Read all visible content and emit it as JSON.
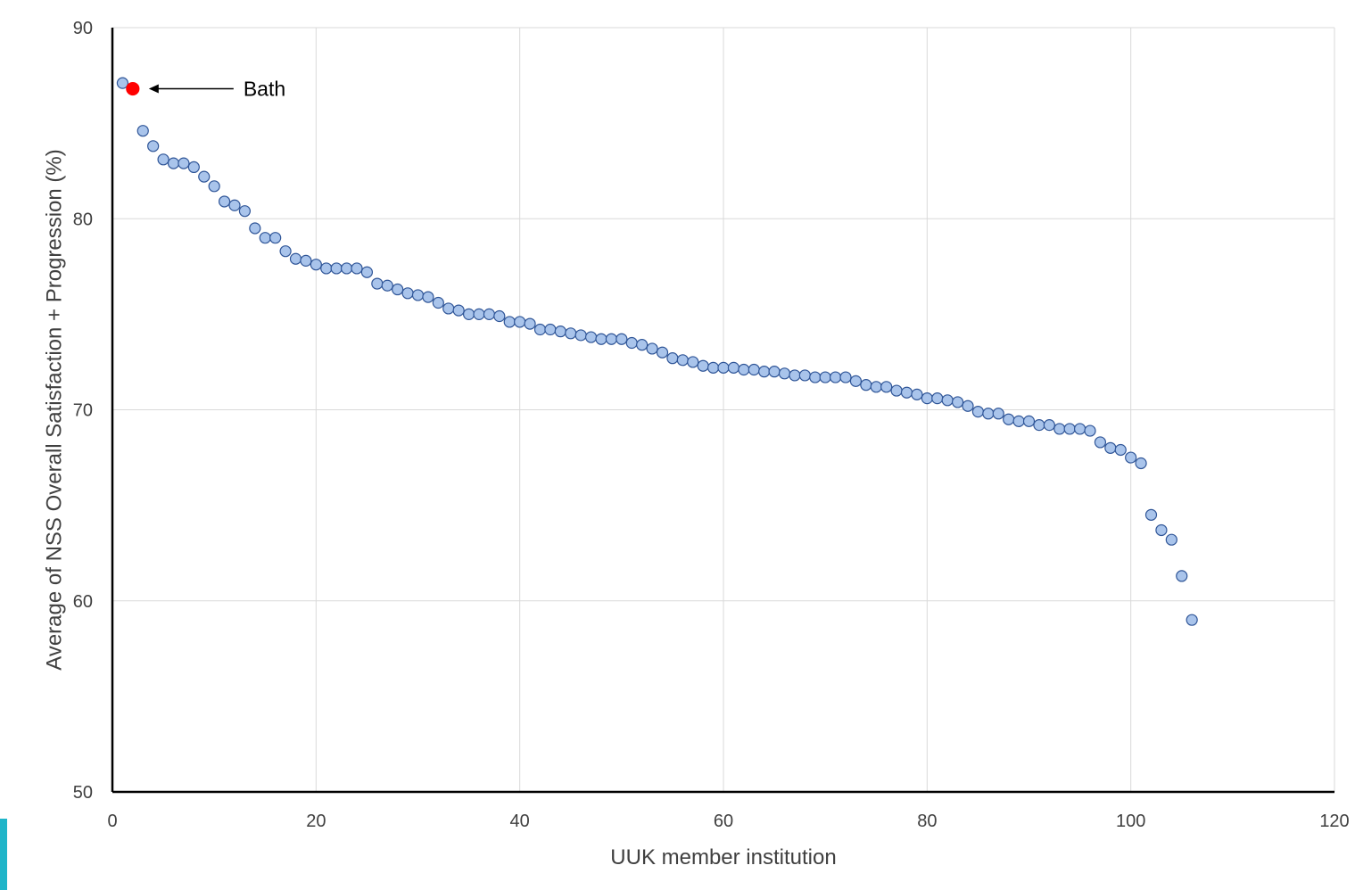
{
  "chart_data": {
    "type": "scatter",
    "title": "",
    "xlabel": "UUK member institution",
    "ylabel": "Average of NSS Overall Satisfaction + Progression (%)",
    "xlim": [
      0,
      120
    ],
    "ylim": [
      50,
      90
    ],
    "xticks": [
      0,
      20,
      40,
      60,
      80,
      100,
      120
    ],
    "yticks": [
      50,
      60,
      70,
      80,
      90
    ],
    "grid": true,
    "legend": "none",
    "colors": {
      "point_fill": "#a9c4eb",
      "point_stroke": "#2f5597",
      "highlight_fill": "#ff0000",
      "grid": "#d9d9d9",
      "axis": "#000000"
    },
    "series": [
      {
        "x": [
          1,
          2,
          3,
          4,
          5,
          6,
          7,
          8,
          9,
          10,
          11,
          12,
          13,
          14,
          15,
          16,
          17,
          18,
          19,
          20,
          21,
          22,
          23,
          24,
          25,
          26,
          27,
          28,
          29,
          30,
          31,
          32,
          33,
          34,
          35,
          36,
          37,
          38,
          39,
          40,
          41,
          42,
          43,
          44,
          45,
          46,
          47,
          48,
          49,
          50,
          51,
          52,
          53,
          54,
          55,
          56,
          57,
          58,
          59,
          60,
          61,
          62,
          63,
          64,
          65,
          66,
          67,
          68,
          69,
          70,
          71,
          72,
          73,
          74,
          75,
          76,
          77,
          78,
          79,
          80,
          81,
          82,
          83,
          84,
          85,
          86,
          87,
          88,
          89,
          90,
          91,
          92,
          93,
          94,
          95,
          96,
          97,
          98,
          99,
          100,
          101,
          102,
          103,
          104,
          105,
          106
        ],
        "y": [
          87.1,
          86.8,
          84.6,
          83.8,
          83.1,
          82.9,
          82.9,
          82.7,
          82.2,
          81.7,
          80.9,
          80.7,
          80.4,
          79.5,
          79.0,
          79.0,
          78.3,
          77.9,
          77.8,
          77.6,
          77.4,
          77.4,
          77.4,
          77.4,
          77.2,
          76.6,
          76.5,
          76.3,
          76.1,
          76.0,
          75.9,
          75.6,
          75.3,
          75.2,
          75.0,
          75.0,
          75.0,
          74.9,
          74.6,
          74.6,
          74.5,
          74.2,
          74.2,
          74.1,
          74.0,
          73.9,
          73.8,
          73.7,
          73.7,
          73.7,
          73.5,
          73.4,
          73.2,
          73.0,
          72.7,
          72.6,
          72.5,
          72.3,
          72.2,
          72.2,
          72.2,
          72.1,
          72.1,
          72.0,
          72.0,
          71.9,
          71.8,
          71.8,
          71.7,
          71.7,
          71.7,
          71.7,
          71.5,
          71.3,
          71.2,
          71.2,
          71.0,
          70.9,
          70.8,
          70.6,
          70.6,
          70.5,
          70.4,
          70.2,
          69.9,
          69.8,
          69.8,
          69.5,
          69.4,
          69.4,
          69.2,
          69.2,
          69.0,
          69.0,
          69.0,
          68.9,
          68.3,
          68.0,
          67.9,
          67.5,
          67.2,
          64.5,
          63.7,
          63.2,
          61.3,
          59.0
        ]
      }
    ],
    "highlight": {
      "index": 1,
      "x": 2,
      "y": 86.8,
      "label": "Bath"
    }
  }
}
